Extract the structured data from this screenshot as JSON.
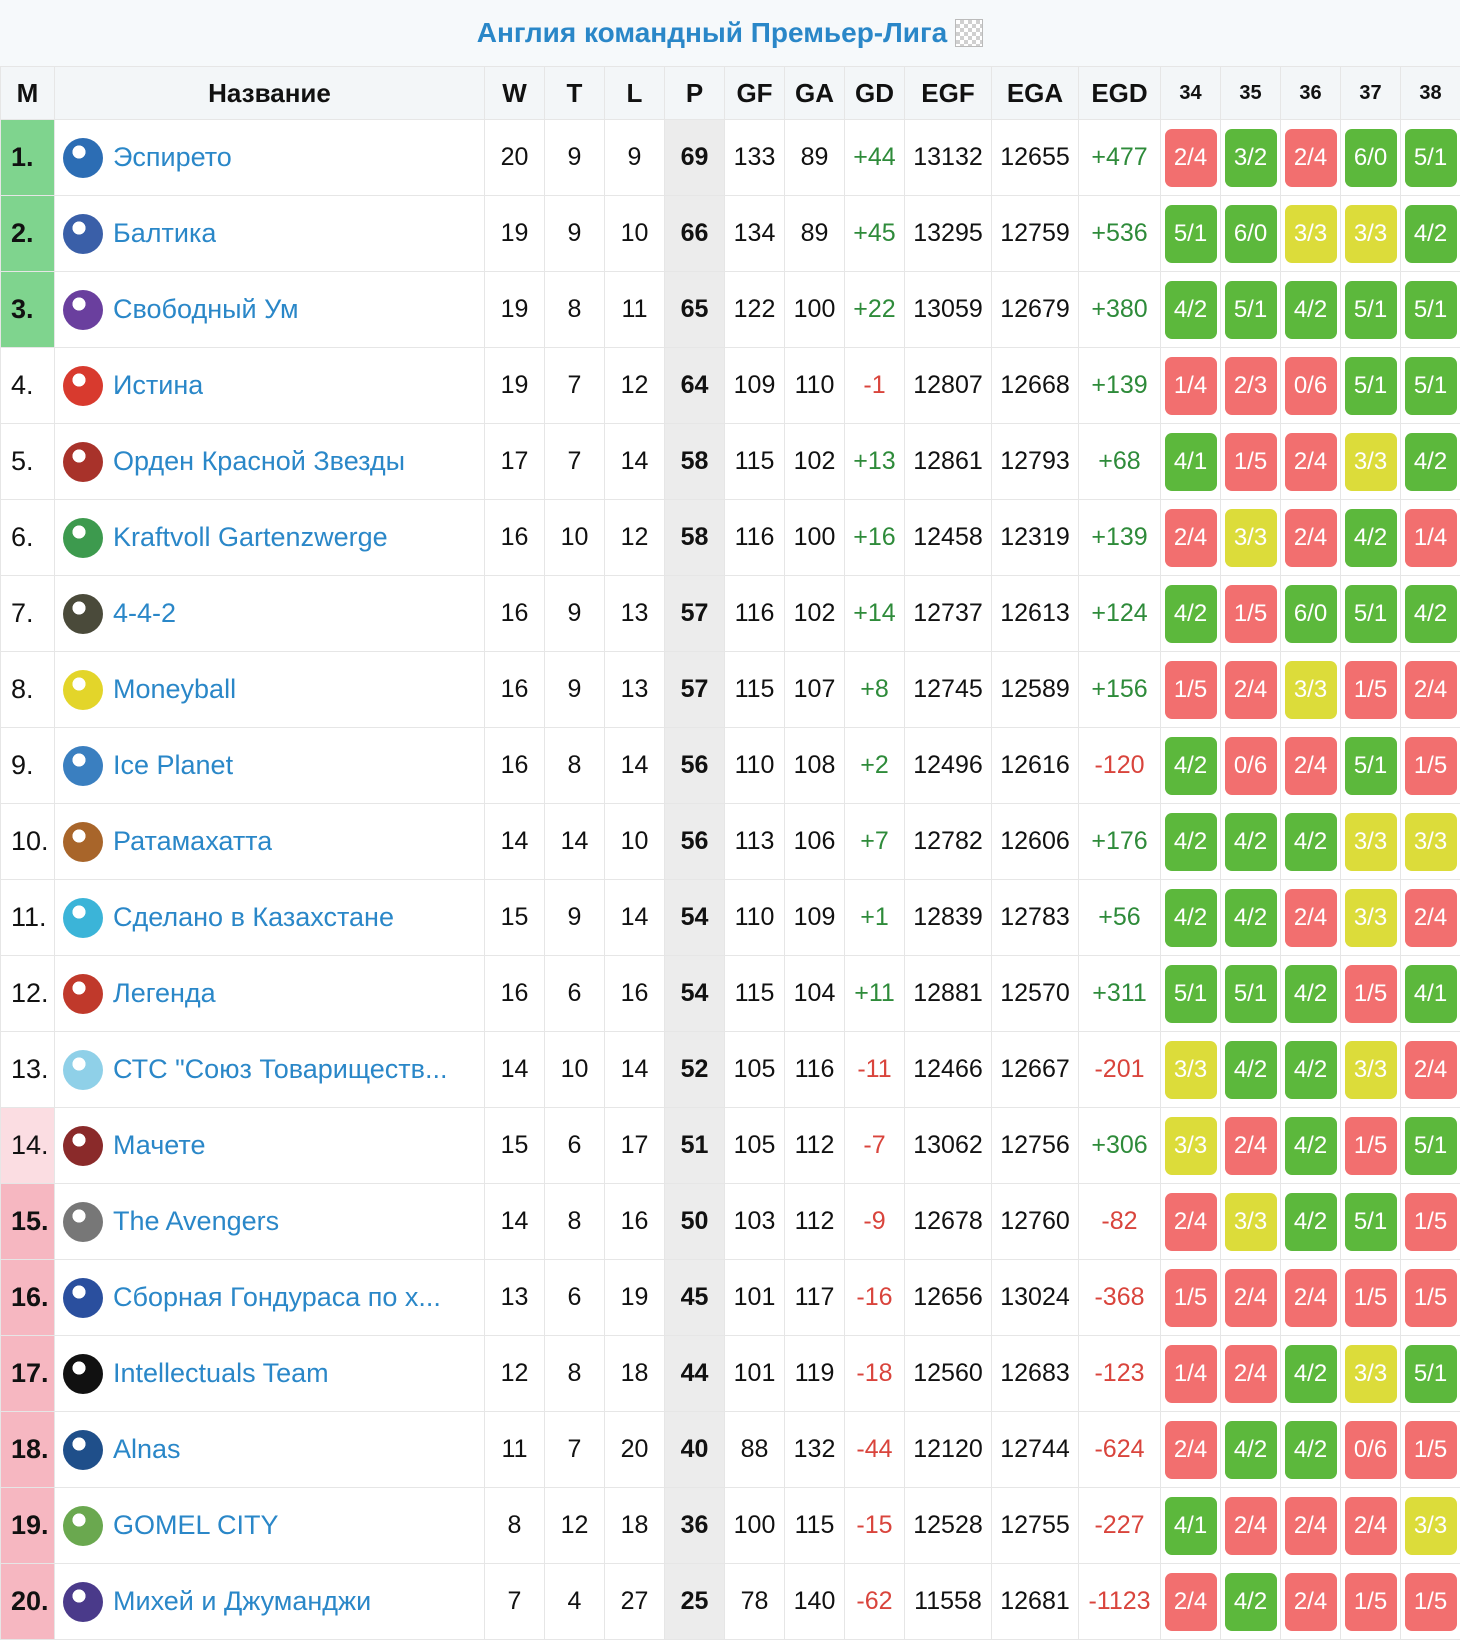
{
  "header": {
    "title": "Англия командный Премьер-Лига",
    "flag_icon": "checkered-flag-icon"
  },
  "columns": {
    "m": "М",
    "name": "Название",
    "w": "W",
    "t": "T",
    "l": "L",
    "p": "P",
    "gf": "GF",
    "ga": "GA",
    "gd": "GD",
    "egf": "EGF",
    "ega": "EGA",
    "egd": "EGD",
    "rounds": [
      "34",
      "35",
      "36",
      "37",
      "38"
    ]
  },
  "colors": {
    "win": "#5cb83c",
    "loss": "#f26f6f",
    "draw": "#dcdc3a",
    "link": "#2a87c8",
    "top": "#7fd48e",
    "relegation": "#f6b7c1"
  },
  "rows": [
    {
      "pos": "1.",
      "team": "Эспирето",
      "logo": "#2c6db4",
      "w": "20",
      "t": "9",
      "l": "9",
      "p": "69",
      "gf": "133",
      "ga": "89",
      "gd": "+44",
      "egf": "13132",
      "ega": "12655",
      "egd": "+477",
      "res": [
        "2/4",
        "3/2",
        "2/4",
        "6/0",
        "5/1"
      ]
    },
    {
      "pos": "2.",
      "team": "Балтика",
      "logo": "#3a5fa8",
      "w": "19",
      "t": "9",
      "l": "10",
      "p": "66",
      "gf": "134",
      "ga": "89",
      "gd": "+45",
      "egf": "13295",
      "ega": "12759",
      "egd": "+536",
      "res": [
        "5/1",
        "6/0",
        "3/3",
        "3/3",
        "4/2"
      ]
    },
    {
      "pos": "3.",
      "team": "Свободный Ум",
      "logo": "#6a3f9e",
      "w": "19",
      "t": "8",
      "l": "11",
      "p": "65",
      "gf": "122",
      "ga": "100",
      "gd": "+22",
      "egf": "13059",
      "ega": "12679",
      "egd": "+380",
      "res": [
        "4/2",
        "5/1",
        "4/2",
        "5/1",
        "5/1"
      ]
    },
    {
      "pos": "4.",
      "team": "Истина",
      "logo": "#d83a2e",
      "w": "19",
      "t": "7",
      "l": "12",
      "p": "64",
      "gf": "109",
      "ga": "110",
      "gd": "-1",
      "egf": "12807",
      "ega": "12668",
      "egd": "+139",
      "res": [
        "1/4",
        "2/3",
        "0/6",
        "5/1",
        "5/1"
      ]
    },
    {
      "pos": "5.",
      "team": "Орден Красной Звезды",
      "logo": "#a8322a",
      "w": "17",
      "t": "7",
      "l": "14",
      "p": "58",
      "gf": "115",
      "ga": "102",
      "gd": "+13",
      "egf": "12861",
      "ega": "12793",
      "egd": "+68",
      "res": [
        "4/1",
        "1/5",
        "2/4",
        "3/3",
        "4/2"
      ]
    },
    {
      "pos": "6.",
      "team": "Kraftvoll Gartenzwerge",
      "logo": "#3d9a4e",
      "w": "16",
      "t": "10",
      "l": "12",
      "p": "58",
      "gf": "116",
      "ga": "100",
      "gd": "+16",
      "egf": "12458",
      "ega": "12319",
      "egd": "+139",
      "res": [
        "2/4",
        "3/3",
        "2/4",
        "4/2",
        "1/4"
      ]
    },
    {
      "pos": "7.",
      "team": "4-4-2",
      "logo": "#4a4a3a",
      "w": "16",
      "t": "9",
      "l": "13",
      "p": "57",
      "gf": "116",
      "ga": "102",
      "gd": "+14",
      "egf": "12737",
      "ega": "12613",
      "egd": "+124",
      "res": [
        "4/2",
        "1/5",
        "6/0",
        "5/1",
        "4/2"
      ]
    },
    {
      "pos": "8.",
      "team": "Moneyball",
      "logo": "#e3d52a",
      "w": "16",
      "t": "9",
      "l": "13",
      "p": "57",
      "gf": "115",
      "ga": "107",
      "gd": "+8",
      "egf": "12745",
      "ega": "12589",
      "egd": "+156",
      "res": [
        "1/5",
        "2/4",
        "3/3",
        "1/5",
        "2/4"
      ]
    },
    {
      "pos": "9.",
      "team": "Ice Planet",
      "logo": "#3a7fc0",
      "w": "16",
      "t": "8",
      "l": "14",
      "p": "56",
      "gf": "110",
      "ga": "108",
      "gd": "+2",
      "egf": "12496",
      "ega": "12616",
      "egd": "-120",
      "res": [
        "4/2",
        "0/6",
        "2/4",
        "5/1",
        "1/5"
      ]
    },
    {
      "pos": "10.",
      "team": "Ратамахатта",
      "logo": "#a8652a",
      "w": "14",
      "t": "14",
      "l": "10",
      "p": "56",
      "gf": "113",
      "ga": "106",
      "gd": "+7",
      "egf": "12782",
      "ega": "12606",
      "egd": "+176",
      "res": [
        "4/2",
        "4/2",
        "4/2",
        "3/3",
        "3/3"
      ]
    },
    {
      "pos": "11.",
      "team": "Сделано в Казахстане",
      "logo": "#3bb4d8",
      "w": "15",
      "t": "9",
      "l": "14",
      "p": "54",
      "gf": "110",
      "ga": "109",
      "gd": "+1",
      "egf": "12839",
      "ega": "12783",
      "egd": "+56",
      "res": [
        "4/2",
        "4/2",
        "2/4",
        "3/3",
        "2/4"
      ]
    },
    {
      "pos": "12.",
      "team": "Легенда",
      "logo": "#c0392b",
      "w": "16",
      "t": "6",
      "l": "16",
      "p": "54",
      "gf": "115",
      "ga": "104",
      "gd": "+11",
      "egf": "12881",
      "ega": "12570",
      "egd": "+311",
      "res": [
        "5/1",
        "5/1",
        "4/2",
        "1/5",
        "4/1"
      ]
    },
    {
      "pos": "13.",
      "team": "СТС \"Союз Товариществ...",
      "logo": "#8fd0e8",
      "w": "14",
      "t": "10",
      "l": "14",
      "p": "52",
      "gf": "105",
      "ga": "116",
      "gd": "-11",
      "egf": "12466",
      "ega": "12667",
      "egd": "-201",
      "res": [
        "3/3",
        "4/2",
        "4/2",
        "3/3",
        "2/4"
      ]
    },
    {
      "pos": "14.",
      "team": "Мачете",
      "logo": "#8a2a2a",
      "w": "15",
      "t": "6",
      "l": "17",
      "p": "51",
      "gf": "105",
      "ga": "112",
      "gd": "-7",
      "egf": "13062",
      "ega": "12756",
      "egd": "+306",
      "res": [
        "3/3",
        "2/4",
        "4/2",
        "1/5",
        "5/1"
      ]
    },
    {
      "pos": "15.",
      "team": "The Avengers",
      "logo": "#777777",
      "w": "14",
      "t": "8",
      "l": "16",
      "p": "50",
      "gf": "103",
      "ga": "112",
      "gd": "-9",
      "egf": "12678",
      "ega": "12760",
      "egd": "-82",
      "res": [
        "2/4",
        "3/3",
        "4/2",
        "5/1",
        "1/5"
      ]
    },
    {
      "pos": "16.",
      "team": "Сборная Гондураса по х...",
      "logo": "#2a4f9e",
      "w": "13",
      "t": "6",
      "l": "19",
      "p": "45",
      "gf": "101",
      "ga": "117",
      "gd": "-16",
      "egf": "12656",
      "ega": "13024",
      "egd": "-368",
      "res": [
        "1/5",
        "2/4",
        "2/4",
        "1/5",
        "1/5"
      ]
    },
    {
      "pos": "17.",
      "team": "Intellectuals Team",
      "logo": "#111111",
      "w": "12",
      "t": "8",
      "l": "18",
      "p": "44",
      "gf": "101",
      "ga": "119",
      "gd": "-18",
      "egf": "12560",
      "ega": "12683",
      "egd": "-123",
      "res": [
        "1/4",
        "2/4",
        "4/2",
        "3/3",
        "5/1"
      ]
    },
    {
      "pos": "18.",
      "team": "Alnas",
      "logo": "#1f4f8a",
      "w": "11",
      "t": "7",
      "l": "20",
      "p": "40",
      "gf": "88",
      "ga": "132",
      "gd": "-44",
      "egf": "12120",
      "ega": "12744",
      "egd": "-624",
      "res": [
        "2/4",
        "4/2",
        "4/2",
        "0/6",
        "1/5"
      ]
    },
    {
      "pos": "19.",
      "team": "GOMEL CITY",
      "logo": "#6aa84f",
      "w": "8",
      "t": "12",
      "l": "18",
      "p": "36",
      "gf": "100",
      "ga": "115",
      "gd": "-15",
      "egf": "12528",
      "ega": "12755",
      "egd": "-227",
      "res": [
        "4/1",
        "2/4",
        "2/4",
        "2/4",
        "3/3"
      ]
    },
    {
      "pos": "20.",
      "team": "Михей и Джуманджи",
      "logo": "#4a3a8a",
      "w": "7",
      "t": "4",
      "l": "27",
      "p": "25",
      "gf": "78",
      "ga": "140",
      "gd": "-62",
      "egf": "11558",
      "ega": "12681",
      "egd": "-1123",
      "res": [
        "2/4",
        "4/2",
        "2/4",
        "1/5",
        "1/5"
      ]
    }
  ]
}
